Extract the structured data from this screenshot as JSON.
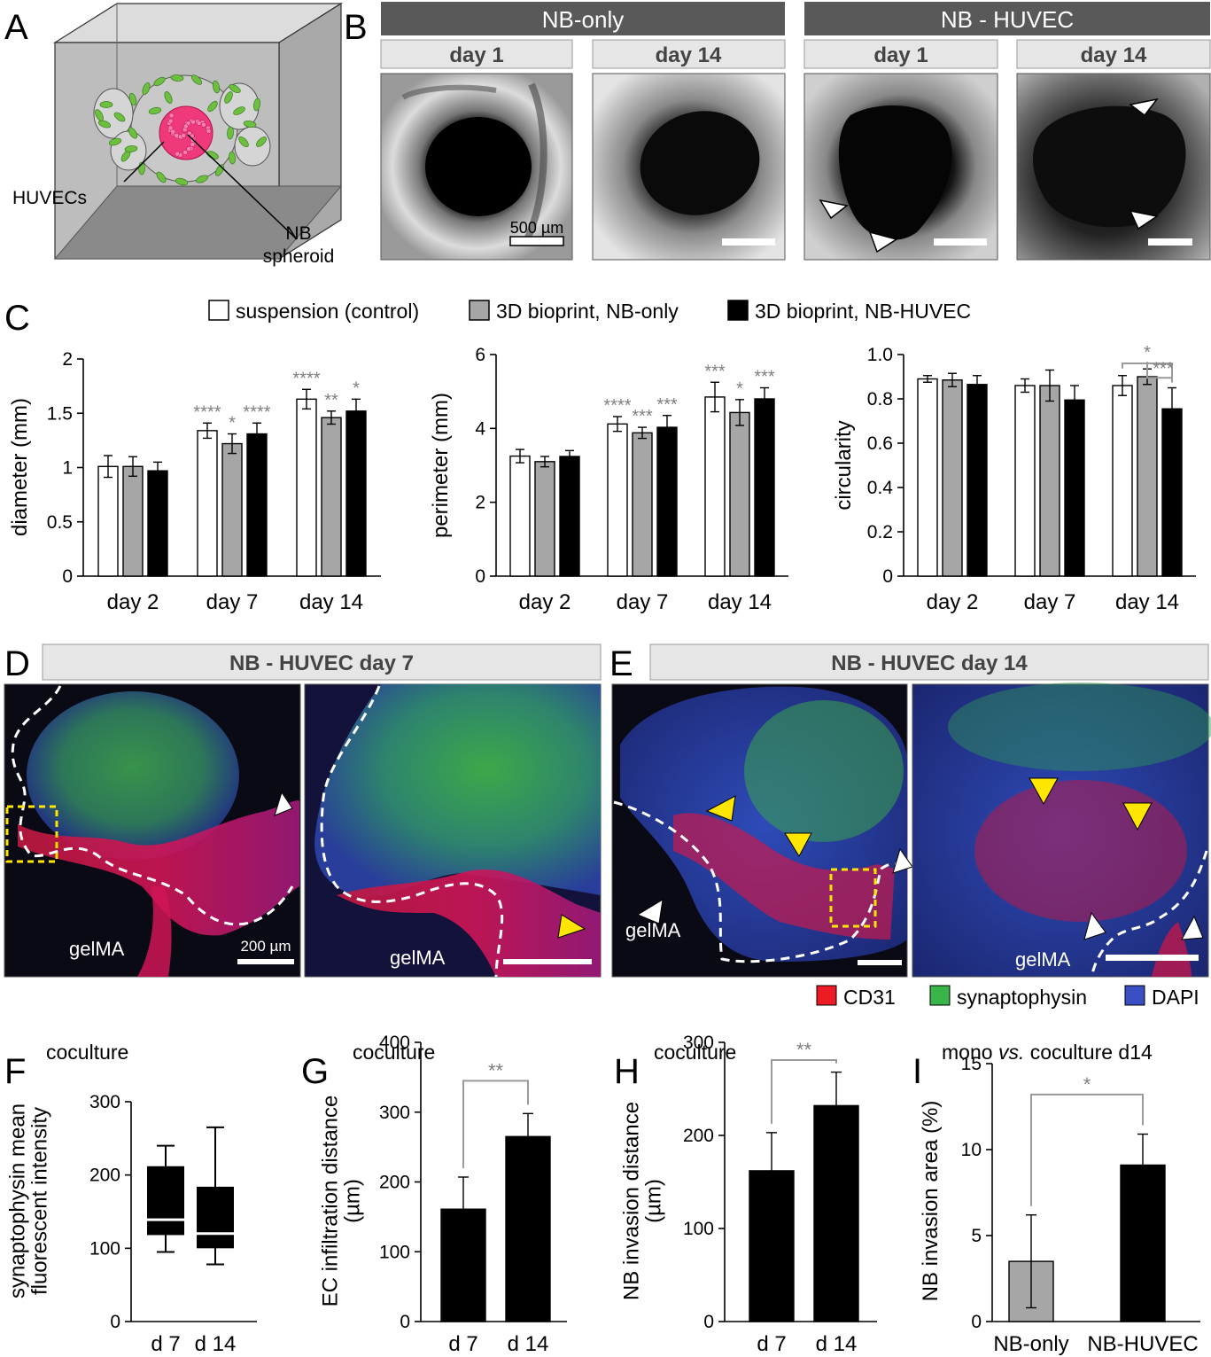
{
  "panels": {
    "A": "A",
    "B": "B",
    "C": "C",
    "D": "D",
    "E": "E",
    "F": "F",
    "G": "G",
    "H": "H",
    "I": "I"
  },
  "panelA": {
    "huvecs_label": "HUVECs",
    "nb_label_line1": "NB",
    "nb_label_line2": "spheroid"
  },
  "panelB": {
    "group1": "NB-only",
    "group2": "NB - HUVEC",
    "images": [
      {
        "label": "day 1",
        "scale": "500 µm"
      },
      {
        "label": "day 14",
        "scale": ""
      },
      {
        "label": "day 1",
        "scale": ""
      },
      {
        "label": "day 14",
        "scale": ""
      }
    ]
  },
  "legendC": [
    "suspension (control)",
    "3D bioprint, NB-only",
    "3D bioprint, NB-HUVEC"
  ],
  "panelD": {
    "title": "NB - HUVEC  day 7",
    "gel1": "gelMA",
    "gel2": "gelMA",
    "scale": "200 µm"
  },
  "panelE": {
    "title": "NB - HUVEC  day 14",
    "gel1": "gelMA",
    "gel2": "gelMA"
  },
  "stainLegend": [
    "CD31",
    "synaptophysin",
    "DAPI"
  ],
  "colors": {
    "control": "#ffffff",
    "nb_only": "#a6a6a6",
    "nb_huvec": "#000000",
    "CD31": "#ed1c24",
    "synaptophysin": "#39b54a",
    "DAPI": "#3a4fc4",
    "star": "#7f7f7f",
    "banner_dark": "#595959",
    "banner_light": "#e6e6e6"
  },
  "chart_data": [
    {
      "id": "C1",
      "type": "bar",
      "ylabel": "diameter (mm)",
      "categories": [
        "day 2",
        "day 7",
        "day 14"
      ],
      "ylim": [
        0,
        2
      ],
      "yticks": [
        "0",
        "0.5",
        "1",
        "1.5",
        "2"
      ],
      "series": [
        {
          "name": "suspension (control)",
          "values": [
            1.01,
            1.34,
            1.63
          ],
          "errors": [
            0.1,
            0.07,
            0.09
          ],
          "stars": [
            "",
            "****",
            "****"
          ]
        },
        {
          "name": "3D bioprint, NB-only",
          "values": [
            1.01,
            1.22,
            1.46
          ],
          "errors": [
            0.09,
            0.09,
            0.06
          ],
          "stars": [
            "",
            "*",
            "**"
          ]
        },
        {
          "name": "3D bioprint, NB-HUVEC",
          "values": [
            0.97,
            1.31,
            1.52
          ],
          "errors": [
            0.08,
            0.1,
            0.11
          ],
          "stars": [
            "",
            "****",
            "*"
          ]
        }
      ]
    },
    {
      "id": "C2",
      "type": "bar",
      "ylabel": "perimeter (mm)",
      "categories": [
        "day 2",
        "day 7",
        "day 14"
      ],
      "ylim": [
        0,
        6
      ],
      "yticks": [
        "0",
        "2",
        "4",
        "6"
      ],
      "series": [
        {
          "name": "suspension (control)",
          "values": [
            3.25,
            4.12,
            4.85
          ],
          "errors": [
            0.18,
            0.2,
            0.4
          ],
          "stars": [
            "",
            "****",
            "***"
          ]
        },
        {
          "name": "3D bioprint, NB-only",
          "values": [
            3.1,
            3.88,
            4.43
          ],
          "errors": [
            0.14,
            0.15,
            0.35
          ],
          "stars": [
            "",
            "***",
            "*"
          ]
        },
        {
          "name": "3D bioprint, NB-HUVEC",
          "values": [
            3.24,
            4.03,
            4.8
          ],
          "errors": [
            0.16,
            0.32,
            0.3
          ],
          "stars": [
            "",
            "***",
            "***"
          ]
        }
      ]
    },
    {
      "id": "C3",
      "type": "bar",
      "ylabel": "circularity",
      "categories": [
        "day 2",
        "day 7",
        "day 14"
      ],
      "ylim": [
        0,
        1.0
      ],
      "yticks": [
        "0",
        "0.2",
        "0.4",
        "0.6",
        "0.8",
        "1.0"
      ],
      "series": [
        {
          "name": "suspension (control)",
          "values": [
            0.89,
            0.86,
            0.86
          ],
          "errors": [
            0.015,
            0.03,
            0.045
          ]
        },
        {
          "name": "3D bioprint, NB-only",
          "values": [
            0.885,
            0.86,
            0.9
          ],
          "errors": [
            0.03,
            0.07,
            0.035
          ]
        },
        {
          "name": "3D bioprint, NB-HUVEC",
          "values": [
            0.865,
            0.795,
            0.755
          ],
          "errors": [
            0.04,
            0.065,
            0.095
          ]
        }
      ],
      "brackets": [
        {
          "stars": "*"
        },
        {
          "stars": "***"
        }
      ]
    },
    {
      "id": "F",
      "type": "box",
      "title": "coculture",
      "ylabel": [
        "synaptophysin mean",
        "fluorescent intensity"
      ],
      "categories": [
        "d 7",
        "d 14"
      ],
      "ylim": [
        0,
        300
      ],
      "yticks": [
        "0",
        "100",
        "200",
        "300"
      ],
      "boxes": [
        {
          "min": 95,
          "q1": 118,
          "median": 139,
          "q3": 212,
          "max": 240
        },
        {
          "min": 78,
          "q1": 100,
          "median": 120,
          "q3": 184,
          "max": 265
        }
      ]
    },
    {
      "id": "G",
      "type": "bar",
      "title": "coculture",
      "ylabel": [
        "EC infiltration distance",
        "(µm)"
      ],
      "categories": [
        "d 7",
        "d 14"
      ],
      "ylim": [
        0,
        400
      ],
      "yticks": [
        "0",
        "100",
        "200",
        "300",
        "400"
      ],
      "values": [
        161,
        265
      ],
      "errors": [
        46,
        33
      ],
      "bracket": "**"
    },
    {
      "id": "H",
      "type": "bar",
      "title": "coculture",
      "ylabel": [
        "NB invasion distance",
        "(µm)"
      ],
      "categories": [
        "d 7",
        "d 14"
      ],
      "ylim": [
        0,
        300
      ],
      "yticks": [
        "0",
        "100",
        "200",
        "300"
      ],
      "values": [
        162,
        232
      ],
      "errors": [
        41,
        36
      ],
      "bracket": "**"
    },
    {
      "id": "I",
      "type": "bar",
      "title_parts": [
        "mono ",
        "vs.",
        " coculture   d14"
      ],
      "ylabel": [
        "NB invasion area (%)"
      ],
      "categories": [
        "NB-only",
        "NB-HUVEC"
      ],
      "ylim": [
        0,
        15
      ],
      "yticks": [
        "0",
        "5",
        "10",
        "15"
      ],
      "values": [
        3.5,
        9.1
      ],
      "errors": [
        2.7,
        1.8
      ],
      "bracket": "*"
    }
  ]
}
